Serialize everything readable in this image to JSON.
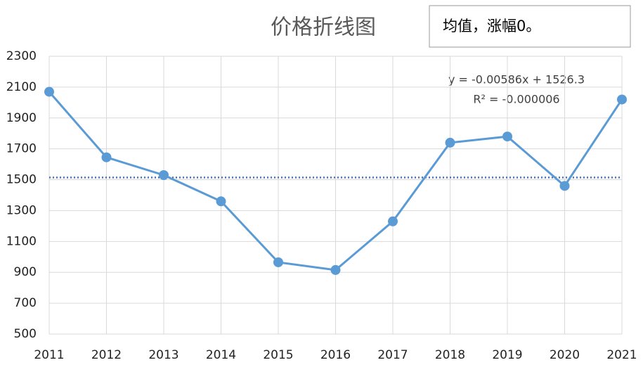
{
  "chart_data": {
    "type": "line",
    "title": "价格折线图",
    "x": [
      2011,
      2012,
      2013,
      2014,
      2015,
      2016,
      2017,
      2018,
      2019,
      2020,
      2021
    ],
    "series": [
      {
        "name": "价格",
        "color": "#5b9bd5",
        "values": [
          2070,
          1645,
          1530,
          1360,
          965,
          915,
          1230,
          1740,
          1780,
          1460,
          2020
        ]
      }
    ],
    "xlim": [
      2011,
      2021
    ],
    "xticks": [
      2011,
      2012,
      2013,
      2014,
      2015,
      2016,
      2017,
      2018,
      2019,
      2020,
      2021
    ],
    "ylim": [
      500,
      2300
    ],
    "yticks": [
      500,
      700,
      900,
      1100,
      1300,
      1500,
      1700,
      1900,
      2100,
      2300
    ],
    "grid": true,
    "trendline": {
      "slope": -0.00586,
      "intercept": 1526.3,
      "color": "#4472c4",
      "equation": "y = -0.00586x + 1526.3",
      "r2": "R² = -0.000006"
    },
    "annotation": "均值，涨幅0。"
  }
}
